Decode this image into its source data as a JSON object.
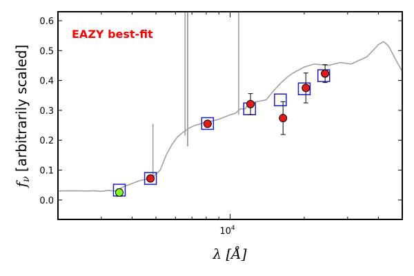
{
  "chart_data": {
    "type": "scatter",
    "annotation": "EAZY best-fit",
    "annotation_color": "#ff0000",
    "xlabel": "λ [Å]",
    "ylabel_parts": {
      "f": "f",
      "nu": "ν",
      "rest": " [arbitrarily scaled]"
    },
    "xscale": "log",
    "xlim": [
      2000,
      50000
    ],
    "ylim": [
      -0.065,
      0.63
    ],
    "y_ticks": [
      0.0,
      0.1,
      0.2,
      0.3,
      0.4,
      0.5,
      0.6
    ],
    "y_tick_labels": [
      "0.0",
      "0.1",
      "0.2",
      "0.3",
      "0.4",
      "0.5",
      "0.6"
    ],
    "x_major_ticks": [
      10000
    ],
    "x_tick_label": {
      "base": "10",
      "exp": "4"
    },
    "x_minor_ticks": [
      3000,
      4000,
      5000,
      6000,
      7000,
      8000,
      9000,
      20000,
      30000,
      40000
    ],
    "colors": {
      "model": "#a0a0a0",
      "model_photometry": "#1a1ad6",
      "observed": "#e61919",
      "observed_edge": "#000000",
      "errorbar": "#000000",
      "uv_point": "#7fff1f"
    },
    "series": [
      {
        "name": "best-fit template",
        "type": "line",
        "x": [
          2000,
          2300,
          2600,
          2800,
          3000,
          3200,
          3400,
          3700,
          4000,
          4300,
          4600,
          4900,
          5200,
          5500,
          5800,
          6100,
          6400,
          6800,
          7200,
          7600,
          8000,
          8500,
          9000,
          9500,
          10000,
          10500,
          11000,
          11500,
          12000,
          13000,
          14000,
          15000,
          16000,
          17000,
          18000,
          20000,
          22000,
          25000,
          28000,
          31000,
          34000,
          36000,
          38000,
          40000,
          42000,
          44000,
          47000,
          50000
        ],
        "y": [
          0.03,
          0.031,
          0.03,
          0.031,
          0.029,
          0.032,
          0.03,
          0.045,
          0.055,
          0.065,
          0.07,
          0.08,
          0.1,
          0.15,
          0.185,
          0.21,
          0.225,
          0.24,
          0.25,
          0.255,
          0.262,
          0.265,
          0.27,
          0.278,
          0.285,
          0.29,
          0.305,
          0.305,
          0.325,
          0.33,
          0.335,
          0.365,
          0.39,
          0.41,
          0.425,
          0.445,
          0.455,
          0.45,
          0.46,
          0.455,
          0.47,
          0.48,
          0.5,
          0.52,
          0.53,
          0.515,
          0.47,
          0.43
        ]
      },
      {
        "name": "emission lines",
        "type": "spikes",
        "lines": [
          {
            "x": 4861,
            "base": 0.07,
            "top": 0.255
          },
          {
            "x": 6563,
            "base": 0.215,
            "top": 0.65
          },
          {
            "x": 6716,
            "base": 0.18,
            "top": 0.65
          },
          {
            "x": 6731,
            "base": 0.18,
            "top": 0.65
          },
          {
            "x": 10830,
            "base": 0.285,
            "top": 0.65
          }
        ]
      },
      {
        "name": "model photometry",
        "type": "square",
        "x": [
          3550,
          4750,
          8100,
          12000,
          16000,
          20000,
          24000
        ],
        "y": [
          0.033,
          0.072,
          0.256,
          0.305,
          0.335,
          0.372,
          0.416
        ]
      },
      {
        "name": "observed photometry",
        "type": "errorbar",
        "points": [
          {
            "x": 3550,
            "y": 0.025,
            "err": 0.012,
            "uv": true
          },
          {
            "x": 4750,
            "y": 0.072,
            "err": 0.0
          },
          {
            "x": 8100,
            "y": 0.255,
            "err": 0.0
          },
          {
            "x": 12100,
            "y": 0.321,
            "err": 0.035
          },
          {
            "x": 16400,
            "y": 0.274,
            "err": 0.055
          },
          {
            "x": 20300,
            "y": 0.375,
            "err": 0.05
          },
          {
            "x": 24300,
            "y": 0.423,
            "err": 0.03
          }
        ]
      }
    ]
  }
}
